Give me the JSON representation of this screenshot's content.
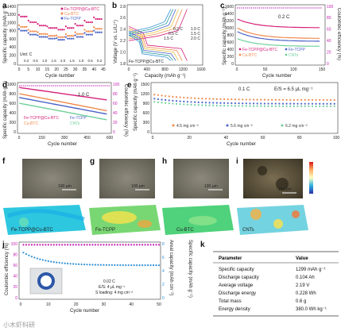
{
  "colors": {
    "fe_tcpp_cu_btc": "#d6217a",
    "cu_btc": "#f08a4b",
    "fe_tcpp": "#4b63c6",
    "cnts": "#6fcf9a",
    "ce_axis": "#c21fb0",
    "areal_axis": "#2f8fd6"
  },
  "panels": {
    "a": {
      "label": "a",
      "ylabel": "Specific capacity (mAh g⁻¹)",
      "xlabel": "Cycle number",
      "yticks": [
        "0",
        "200",
        "400",
        "600",
        "800",
        "1000",
        "1200",
        "1400"
      ],
      "xticks": [
        "0",
        "5",
        "10",
        "15",
        "20",
        "25",
        "30",
        "35",
        "40",
        "45"
      ],
      "unit": "Unit: C",
      "rates": [
        "0.2",
        "0.5",
        "1.0",
        "1.5",
        "2.0",
        "1.5",
        "1.0",
        "0.5",
        "0.2"
      ],
      "legend": [
        "Fe-TCPP@Cu-BTC",
        "Cu-BTC",
        "Fe-TCPP"
      ]
    },
    "b": {
      "label": "b",
      "ylabel": "Voltage (V vs. Li/Li⁺)",
      "xlabel": "Capacity (mAh g⁻¹)",
      "yticks": [
        "1.8",
        "2.0",
        "2.2",
        "2.4",
        "2.6",
        "2.8"
      ],
      "xticks": [
        "0",
        "400",
        "800",
        "1200",
        "1600"
      ],
      "rates_left": [
        "0.2 C",
        "0.5 C",
        "1.5 C"
      ],
      "rates_right": [
        "1.0 C",
        "1.5 C",
        "2.0 C"
      ],
      "sample": "Fe-TCPP@Cu-BTC"
    },
    "c": {
      "label": "c",
      "ylabel": "Specific capacity (mAh g⁻¹)",
      "y2label": "Coulombic efficiency (%)",
      "xlabel": "Cycle number",
      "rate": "0.2 C",
      "yticks": [
        "0",
        "200",
        "400",
        "600",
        "800",
        "1000",
        "1200",
        "1400",
        "1600"
      ],
      "y2ticks": [
        "0",
        "20",
        "40",
        "60",
        "80",
        "100"
      ],
      "xticks": [
        "0",
        "50",
        "100",
        "150"
      ],
      "legend": [
        "Fe-TCPP@Cu-BTC",
        "Cu-BTC",
        "Fe-TCPP",
        "CNTs"
      ]
    },
    "d": {
      "label": "d",
      "ylabel": "Specific capacity (mAh g⁻¹)",
      "y2label": "Coulombic efficiency (%)",
      "xlabel": "Cycle number",
      "rate": "1.0 C",
      "yticks": [
        "0",
        "200",
        "400",
        "600",
        "800",
        "1000"
      ],
      "y2ticks": [
        "0",
        "20",
        "40",
        "60",
        "80",
        "100"
      ],
      "xticks": [
        "0",
        "150",
        "300",
        "450",
        "600"
      ],
      "legend": [
        "Fe-TCPP@Cu-BTC",
        "Cu-BTC",
        "Fe-TCPP",
        "CNTs"
      ]
    },
    "e": {
      "label": "e",
      "ylabel": "Specific capacity (mAh g⁻¹)",
      "xlabel": "Cycle number",
      "rate": "0.1 C",
      "es": "E/S = 6.5 μL mg⁻¹",
      "yticks": [
        "0",
        "300",
        "600",
        "900",
        "1200",
        "1500"
      ],
      "xticks": [
        "0",
        "20",
        "40",
        "60",
        "80",
        "100"
      ],
      "legend": [
        "4.5 mg cm⁻²",
        "5.6 mg cm⁻²",
        "6.2 mg cm⁻²"
      ]
    },
    "f": {
      "label": "f",
      "scale": "100 μm",
      "name": "Fe-TCPP@Cu-BTC"
    },
    "g": {
      "label": "g",
      "scale": "100 μm",
      "name": "Fe-TCPP"
    },
    "h": {
      "label": "h",
      "scale": "100 μm",
      "name": "Cu-BTC"
    },
    "i": {
      "label": "i",
      "scale": "100 μm",
      "name": "CNTs"
    },
    "j": {
      "label": "j",
      "ylabel": "Coulombic efficiency (%)",
      "y2label": "Specific capacity (mAh g⁻¹)",
      "y3label": "Areal capacity (mAh cm⁻²)",
      "xlabel": "Cycle number",
      "rate": "0.02 C",
      "es": "E/S: 4 μL mg⁻¹",
      "loading": "S loading: 4 mg cm⁻²",
      "yticks": [
        "0",
        "20",
        "40",
        "60",
        "80",
        "100"
      ],
      "y2ticks": [
        "0",
        "2",
        "4",
        "6",
        "8"
      ],
      "y3ticks": [
        "0",
        "300",
        "600",
        "900",
        "1200",
        "1500"
      ],
      "xticks": [
        "0",
        "10",
        "20",
        "30",
        "40",
        "50"
      ]
    },
    "k": {
      "label": "k",
      "headers": [
        "Parameter",
        "Value"
      ],
      "rows": [
        [
          "Specific capacity",
          "1299 mAh g⁻¹"
        ],
        [
          "Discharge capacity",
          "0.104 Ah"
        ],
        [
          "Average voltage",
          "2.19 V"
        ],
        [
          "Discharge energy",
          "0.228 Wh"
        ],
        [
          "Total mass",
          "0.6 g"
        ],
        [
          "Energy density",
          "380.0 Wh kg⁻¹"
        ]
      ]
    }
  },
  "watermark": "小木虾科研"
}
